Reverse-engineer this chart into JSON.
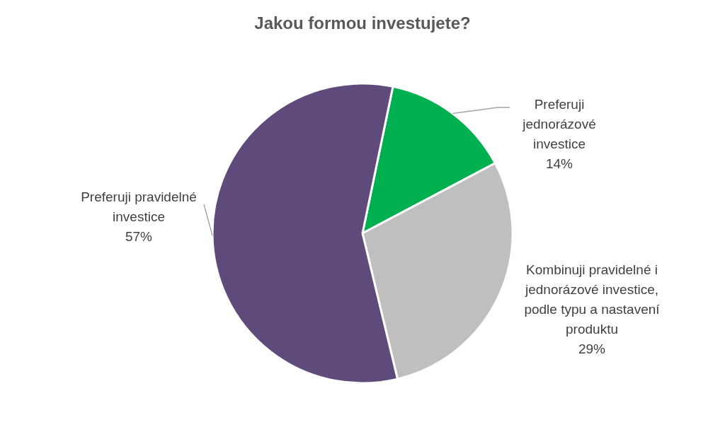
{
  "chart_data": {
    "type": "pie",
    "title": "Jakou formou investujete?",
    "categories": [
      "Preferuji jednorázové investice",
      "Kombinuji pravidelné i jednorázové investice, podle typu a nastavení produktu",
      "Preferuji pravidelné investice"
    ],
    "values": [
      14,
      29,
      57
    ],
    "colors": [
      "#00b050",
      "#bfbfbf",
      "#5f4b7b"
    ],
    "value_labels": [
      "14%",
      "29%",
      "57%"
    ]
  }
}
